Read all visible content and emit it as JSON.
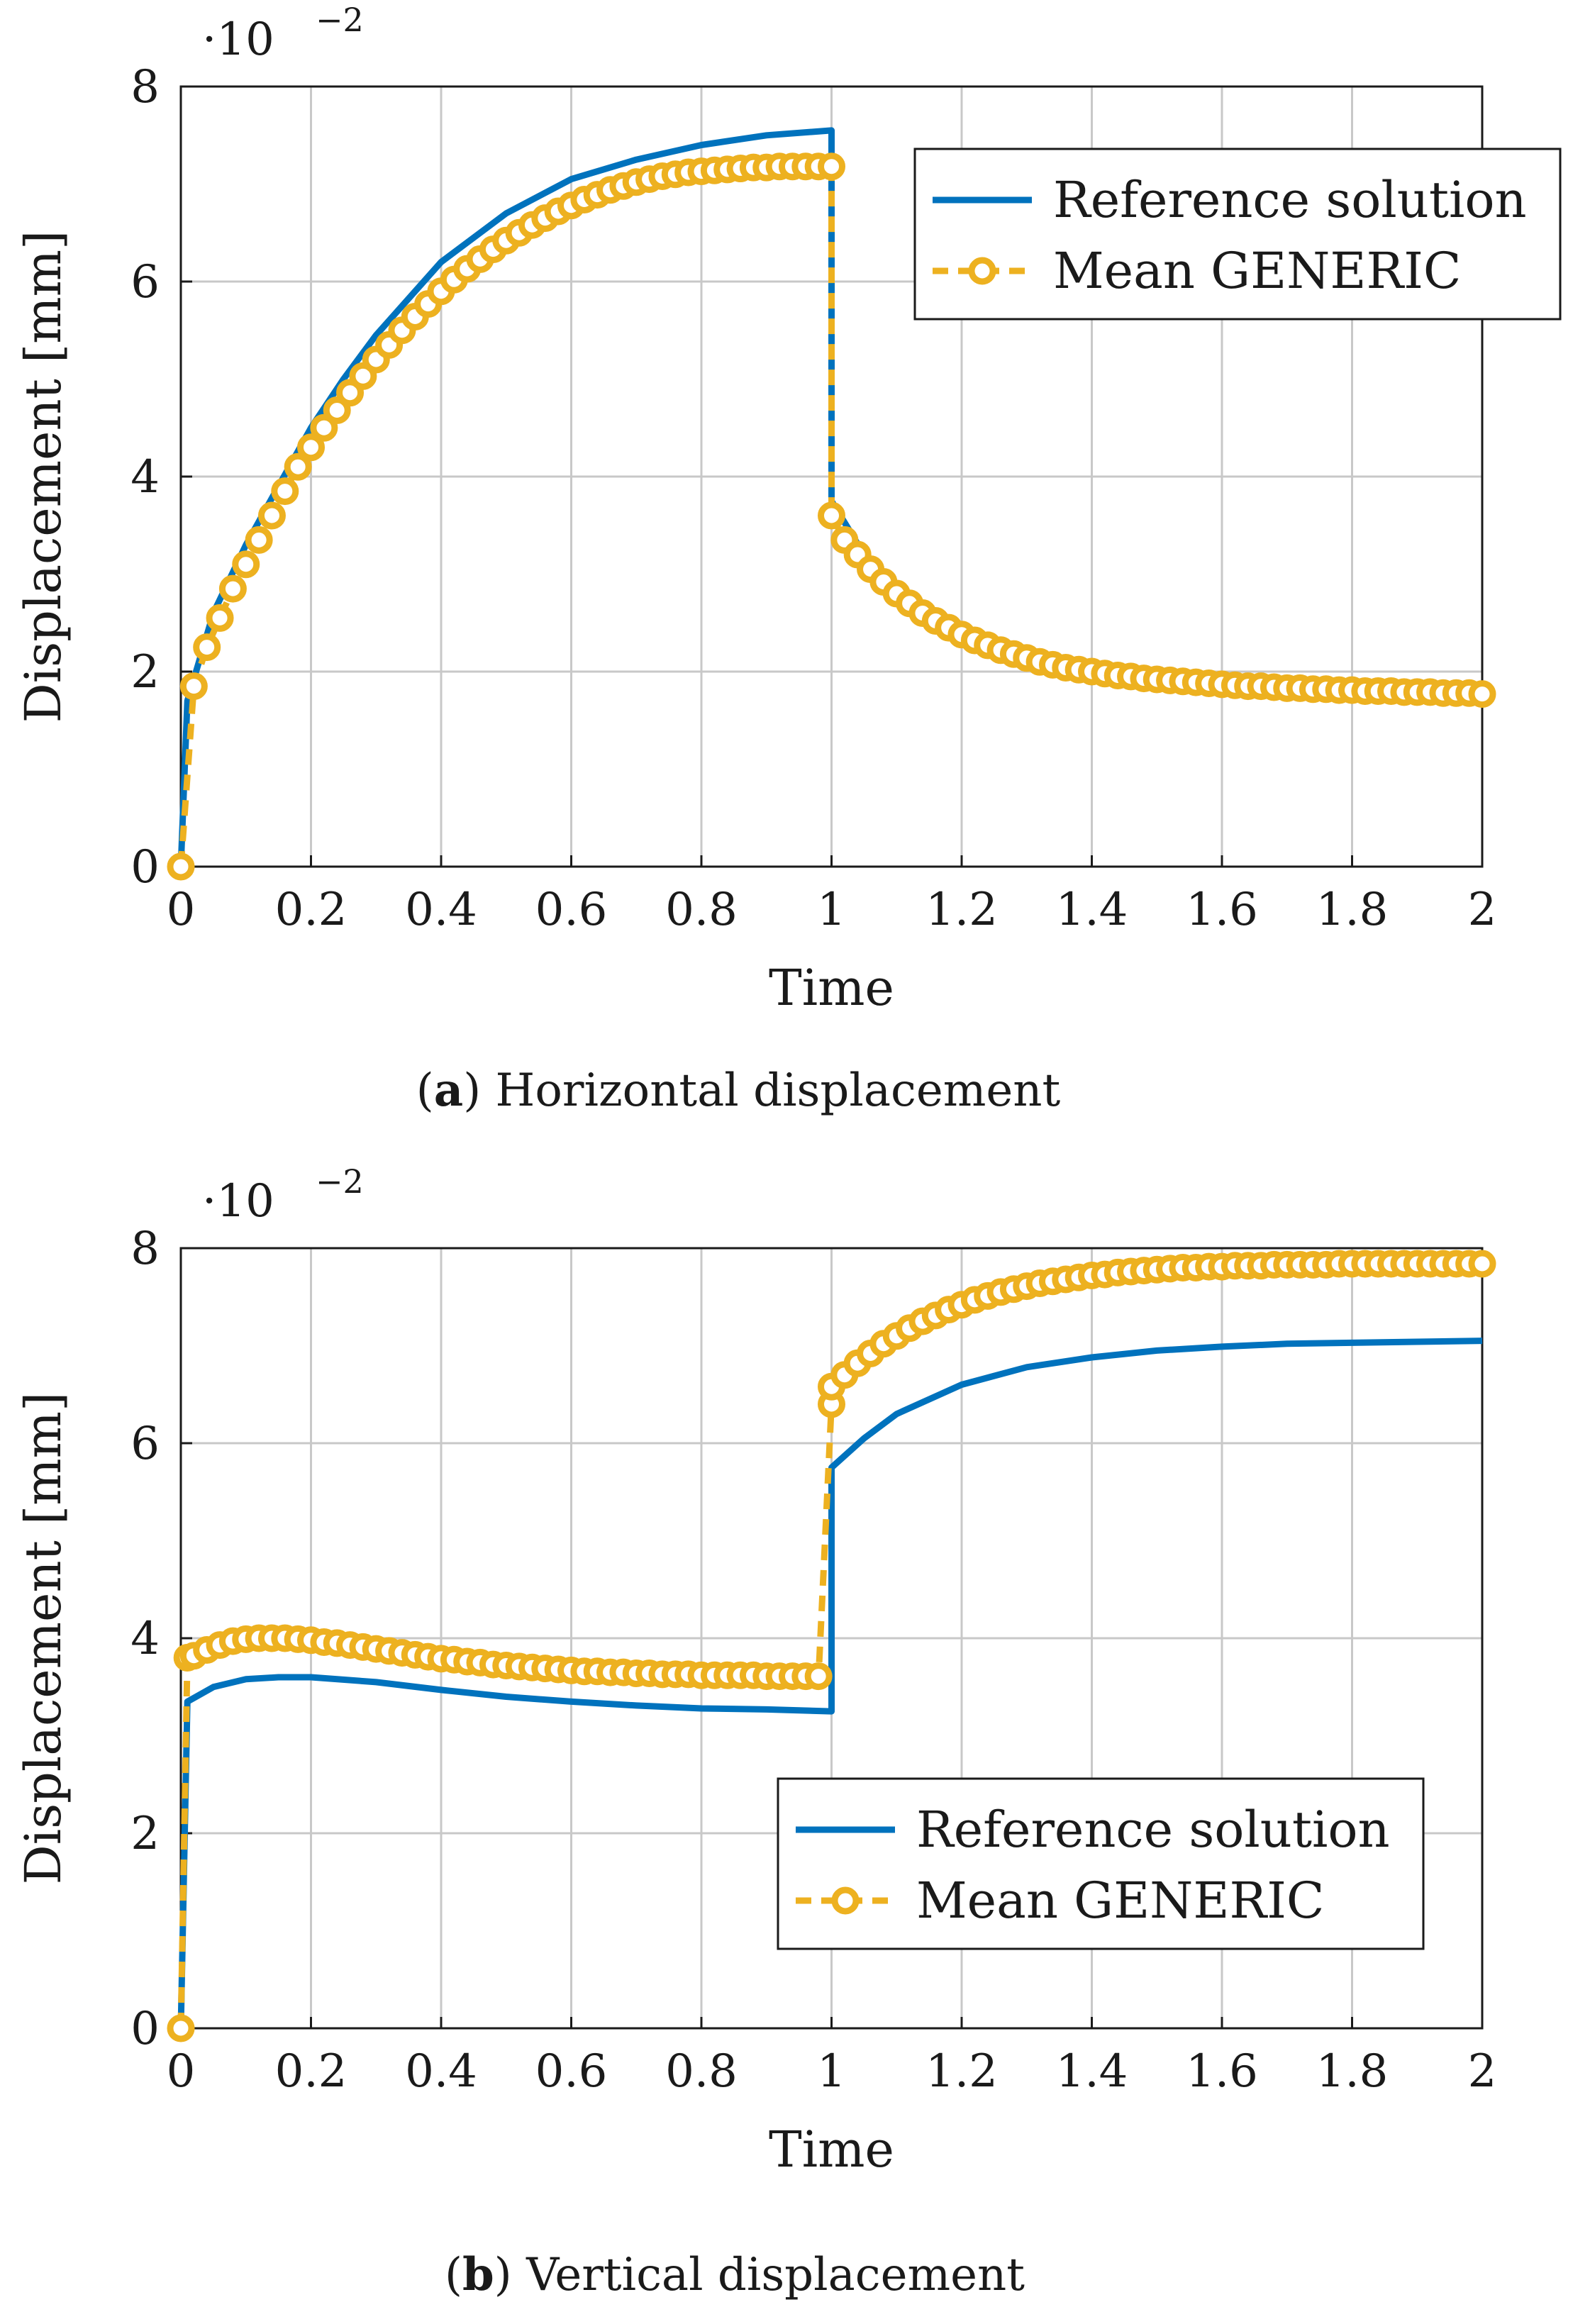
{
  "colors": {
    "reference": "#0072BD",
    "generic": "#EDB120",
    "grid": "#c8c8c8",
    "axis": "#1a1a1a"
  },
  "panels": [
    {
      "id": "a",
      "caption_letter": "a",
      "caption_text": "Horizontal displacement",
      "legend": {
        "reference": "Reference solution",
        "generic": "Mean GENERIC"
      },
      "axis_exponent_label": "·10",
      "axis_exponent_power": "−2"
    },
    {
      "id": "b",
      "caption_letter": "b",
      "caption_text": "Vertical displacement",
      "legend": {
        "reference": "Reference solution",
        "generic": "Mean GENERIC"
      },
      "axis_exponent_label": "·10",
      "axis_exponent_power": "−2"
    }
  ],
  "chart_data": [
    {
      "type": "line",
      "xlabel": "Time",
      "ylabel": "Displacement [mm]",
      "xlim": [
        0,
        2
      ],
      "ylim": [
        0,
        8
      ],
      "y_scale_note": "·10^−2",
      "xticks": [
        "0",
        "0.2",
        "0.4",
        "0.6",
        "0.8",
        "1",
        "1.2",
        "1.4",
        "1.6",
        "1.8",
        "2"
      ],
      "yticks": [
        "0",
        "2",
        "4",
        "6",
        "8"
      ],
      "grid": true,
      "legend_position": "top-right",
      "series": [
        {
          "name": "Reference solution",
          "style": "solid",
          "x": [
            0,
            0.01,
            0.05,
            0.1,
            0.15,
            0.2,
            0.25,
            0.3,
            0.4,
            0.5,
            0.6,
            0.7,
            0.8,
            0.9,
            1.0,
            1.0,
            1.05,
            1.1,
            1.2,
            1.3,
            1.4,
            1.5,
            1.6,
            1.7,
            1.8,
            1.9,
            2.0
          ],
          "y": [
            0,
            1.7,
            2.6,
            3.3,
            3.9,
            4.5,
            5.0,
            5.45,
            6.2,
            6.7,
            7.05,
            7.25,
            7.4,
            7.5,
            7.55,
            3.75,
            3.2,
            2.85,
            2.4,
            2.15,
            2.0,
            1.92,
            1.87,
            1.85,
            1.83,
            1.82,
            1.8
          ]
        },
        {
          "name": "Mean GENERIC",
          "style": "dashed-circles",
          "x": [
            0,
            0.02,
            0.04,
            0.06,
            0.08,
            0.1,
            0.12,
            0.14,
            0.16,
            0.18,
            0.2,
            0.22,
            0.24,
            0.26,
            0.28,
            0.3,
            0.32,
            0.34,
            0.36,
            0.38,
            0.4,
            0.42,
            0.44,
            0.46,
            0.48,
            0.5,
            0.52,
            0.54,
            0.56,
            0.58,
            0.6,
            0.62,
            0.64,
            0.66,
            0.68,
            0.7,
            0.72,
            0.74,
            0.76,
            0.78,
            0.8,
            0.82,
            0.84,
            0.86,
            0.88,
            0.9,
            0.92,
            0.94,
            0.96,
            0.98,
            1.0,
            1.0,
            1.02,
            1.04,
            1.06,
            1.08,
            1.1,
            1.12,
            1.14,
            1.16,
            1.18,
            1.2,
            1.22,
            1.24,
            1.26,
            1.28,
            1.3,
            1.32,
            1.34,
            1.36,
            1.38,
            1.4,
            1.42,
            1.44,
            1.46,
            1.48,
            1.5,
            1.52,
            1.54,
            1.56,
            1.58,
            1.6,
            1.62,
            1.64,
            1.66,
            1.68,
            1.7,
            1.72,
            1.74,
            1.76,
            1.78,
            1.8,
            1.82,
            1.84,
            1.86,
            1.88,
            1.9,
            1.92,
            1.94,
            1.96,
            1.98,
            2.0
          ],
          "y": [
            0,
            1.85,
            2.25,
            2.55,
            2.85,
            3.1,
            3.35,
            3.6,
            3.85,
            4.1,
            4.3,
            4.5,
            4.68,
            4.86,
            5.03,
            5.2,
            5.35,
            5.5,
            5.64,
            5.77,
            5.9,
            6.02,
            6.13,
            6.23,
            6.33,
            6.42,
            6.5,
            6.58,
            6.65,
            6.72,
            6.78,
            6.84,
            6.89,
            6.94,
            6.98,
            7.02,
            7.05,
            7.08,
            7.1,
            7.12,
            7.13,
            7.14,
            7.15,
            7.16,
            7.17,
            7.17,
            7.18,
            7.18,
            7.18,
            7.18,
            7.18,
            3.6,
            3.35,
            3.2,
            3.05,
            2.92,
            2.8,
            2.7,
            2.6,
            2.52,
            2.45,
            2.38,
            2.32,
            2.27,
            2.22,
            2.18,
            2.14,
            2.1,
            2.07,
            2.04,
            2.02,
            2.0,
            1.98,
            1.96,
            1.95,
            1.93,
            1.92,
            1.91,
            1.9,
            1.89,
            1.88,
            1.87,
            1.86,
            1.85,
            1.85,
            1.84,
            1.83,
            1.83,
            1.82,
            1.82,
            1.81,
            1.81,
            1.8,
            1.8,
            1.8,
            1.79,
            1.79,
            1.79,
            1.78,
            1.78,
            1.78,
            1.77
          ]
        }
      ]
    },
    {
      "type": "line",
      "xlabel": "Time",
      "ylabel": "Displacement [mm]",
      "xlim": [
        0,
        2
      ],
      "ylim": [
        0,
        8
      ],
      "y_scale_note": "·10^−2",
      "xticks": [
        "0",
        "0.2",
        "0.4",
        "0.6",
        "0.8",
        "1",
        "1.2",
        "1.4",
        "1.6",
        "1.8",
        "2"
      ],
      "yticks": [
        "0",
        "2",
        "4",
        "6",
        "8"
      ],
      "grid": true,
      "legend_position": "middle-right",
      "series": [
        {
          "name": "Reference solution",
          "style": "solid",
          "x": [
            0,
            0.01,
            0.05,
            0.1,
            0.15,
            0.2,
            0.3,
            0.4,
            0.5,
            0.6,
            0.7,
            0.8,
            0.9,
            1.0,
            1.0,
            1.05,
            1.1,
            1.2,
            1.3,
            1.4,
            1.5,
            1.6,
            1.7,
            1.8,
            1.9,
            2.0
          ],
          "y": [
            0,
            3.35,
            3.5,
            3.58,
            3.6,
            3.6,
            3.55,
            3.47,
            3.4,
            3.35,
            3.31,
            3.28,
            3.27,
            3.25,
            5.75,
            6.05,
            6.3,
            6.6,
            6.78,
            6.88,
            6.95,
            6.99,
            7.02,
            7.03,
            7.04,
            7.05
          ]
        },
        {
          "name": "Mean GENERIC",
          "style": "dashed-circles",
          "x": [
            0,
            0.01,
            0.02,
            0.04,
            0.06,
            0.08,
            0.1,
            0.12,
            0.14,
            0.16,
            0.18,
            0.2,
            0.22,
            0.24,
            0.26,
            0.28,
            0.3,
            0.32,
            0.34,
            0.36,
            0.38,
            0.4,
            0.42,
            0.44,
            0.46,
            0.48,
            0.5,
            0.52,
            0.54,
            0.56,
            0.58,
            0.6,
            0.62,
            0.64,
            0.66,
            0.68,
            0.7,
            0.72,
            0.74,
            0.76,
            0.78,
            0.8,
            0.82,
            0.84,
            0.86,
            0.88,
            0.9,
            0.92,
            0.94,
            0.96,
            0.98,
            1.0,
            1.0,
            1.02,
            1.04,
            1.06,
            1.08,
            1.1,
            1.12,
            1.14,
            1.16,
            1.18,
            1.2,
            1.22,
            1.24,
            1.26,
            1.28,
            1.3,
            1.32,
            1.34,
            1.36,
            1.38,
            1.4,
            1.42,
            1.44,
            1.46,
            1.48,
            1.5,
            1.52,
            1.54,
            1.56,
            1.58,
            1.6,
            1.62,
            1.64,
            1.66,
            1.68,
            1.7,
            1.72,
            1.74,
            1.76,
            1.78,
            1.8,
            1.82,
            1.84,
            1.86,
            1.88,
            1.9,
            1.92,
            1.94,
            1.96,
            1.98,
            2.0
          ],
          "y": [
            0,
            3.8,
            3.82,
            3.88,
            3.93,
            3.97,
            3.99,
            4.0,
            4.0,
            4.0,
            3.99,
            3.98,
            3.96,
            3.95,
            3.93,
            3.91,
            3.89,
            3.87,
            3.85,
            3.83,
            3.81,
            3.79,
            3.78,
            3.76,
            3.75,
            3.73,
            3.72,
            3.71,
            3.7,
            3.69,
            3.68,
            3.67,
            3.66,
            3.66,
            3.65,
            3.65,
            3.64,
            3.64,
            3.63,
            3.63,
            3.63,
            3.62,
            3.62,
            3.62,
            3.62,
            3.62,
            3.61,
            3.61,
            3.61,
            3.61,
            3.61,
            6.4,
            6.58,
            6.7,
            6.82,
            6.92,
            7.02,
            7.1,
            7.18,
            7.25,
            7.31,
            7.37,
            7.42,
            7.47,
            7.51,
            7.55,
            7.58,
            7.61,
            7.64,
            7.66,
            7.68,
            7.7,
            7.72,
            7.73,
            7.75,
            7.76,
            7.77,
            7.78,
            7.79,
            7.8,
            7.8,
            7.81,
            7.81,
            7.82,
            7.82,
            7.82,
            7.83,
            7.83,
            7.83,
            7.83,
            7.83,
            7.84,
            7.84,
            7.84,
            7.84,
            7.84,
            7.84,
            7.84,
            7.84,
            7.84,
            7.84,
            7.84,
            7.84
          ]
        }
      ]
    }
  ]
}
